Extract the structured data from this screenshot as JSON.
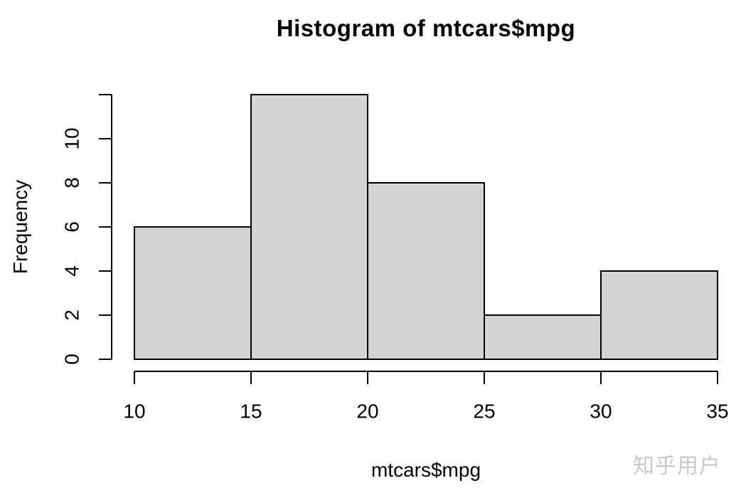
{
  "chart_data": {
    "type": "bar",
    "subtype": "histogram",
    "title": "Histogram of mtcars$mpg",
    "xlabel": "mtcars$mpg",
    "ylabel": "Frequency",
    "breaks": [
      10,
      15,
      20,
      25,
      30,
      35
    ],
    "counts": [
      6,
      12,
      8,
      2,
      4
    ],
    "categories": [
      "10-15",
      "15-20",
      "20-25",
      "25-30",
      "30-35"
    ],
    "values": [
      6,
      12,
      8,
      2,
      4
    ],
    "x_ticks": [
      10,
      15,
      20,
      25,
      30,
      35
    ],
    "y_ticks": [
      0,
      2,
      4,
      6,
      8,
      10
    ],
    "y_axis_top_tick_unlabeled": 12,
    "xlim": [
      10,
      35
    ],
    "ylim": [
      0,
      12
    ],
    "grid": "off",
    "legend": "none",
    "bar_fill": "#d3d3d3",
    "bar_stroke": "#000000",
    "axis_color": "#000000"
  },
  "watermark": {
    "text": "知乎用户",
    "color": "#c9c9c9"
  }
}
